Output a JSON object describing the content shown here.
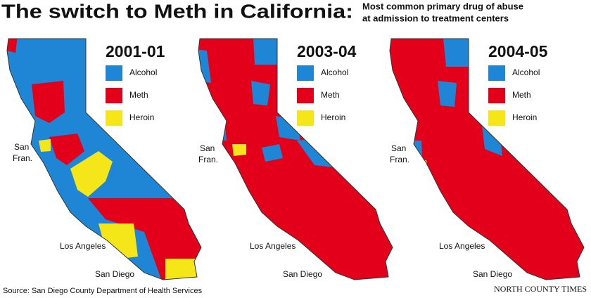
{
  "header": {
    "title": "The switch to Meth in California:",
    "subtitle": [
      "Most common primary drug of abuse",
      "at admission to treatment centers"
    ]
  },
  "panels": [
    {
      "year": "2001-01",
      "legend": [
        "Alcohol",
        "Meth",
        "Heroin"
      ],
      "cities": [
        [
          "San",
          "Fran."
        ],
        "Los Angeles",
        "San Diego"
      ]
    },
    {
      "year": "2003-04",
      "legend": [
        "Alcohol",
        "Meth",
        "Heroin"
      ],
      "cities": [
        [
          "San",
          "Fran."
        ],
        "Los Angeles",
        "San Diego"
      ]
    },
    {
      "year": "2004-05",
      "legend": [
        "Alcohol",
        "Meth",
        "Heroin"
      ],
      "cities": [
        [
          "San",
          "Fran."
        ],
        "Los Angeles",
        "San Diego"
      ]
    }
  ],
  "footer": {
    "source": "Source: San Diego County Department of Health Services",
    "credit": "NORTH COUNTY TIMES"
  }
}
